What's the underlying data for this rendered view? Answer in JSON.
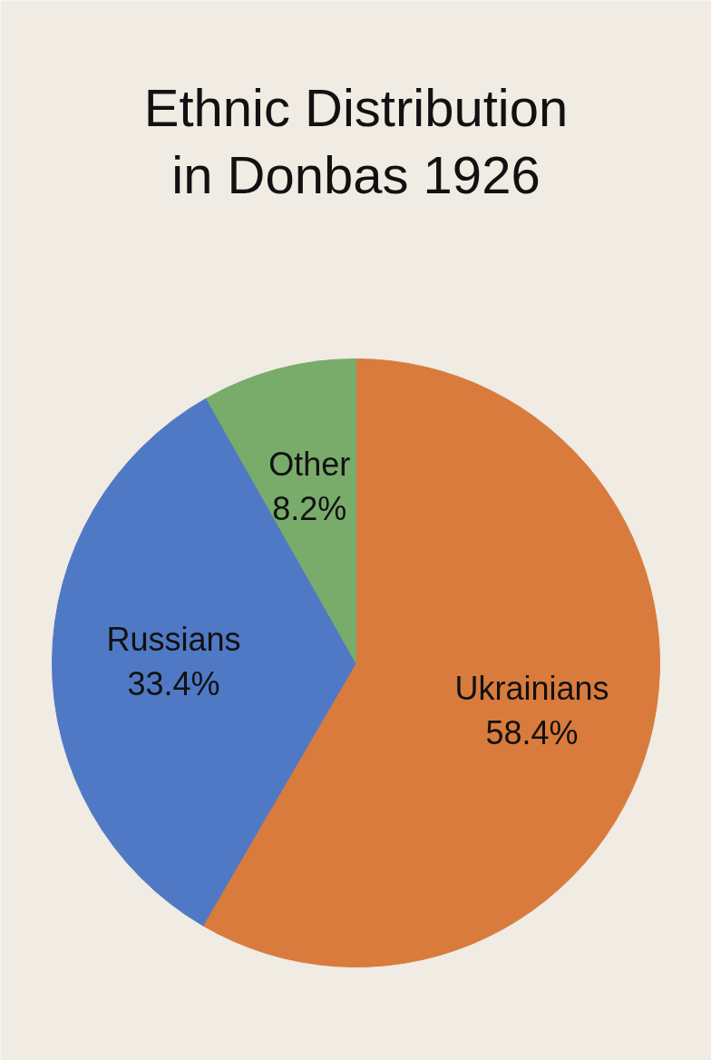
{
  "chart_data": {
    "type": "pie",
    "title": "Ethnic Distribution in Donbas 1926",
    "categories": [
      "Ukrainians",
      "Russians",
      "Other"
    ],
    "values": [
      58.4,
      33.4,
      8.2
    ],
    "value_labels": [
      "58.4%",
      "33.4%",
      "8.2%"
    ],
    "colors": [
      "#d97b3c",
      "#4f79c4",
      "#79ab6a"
    ]
  }
}
